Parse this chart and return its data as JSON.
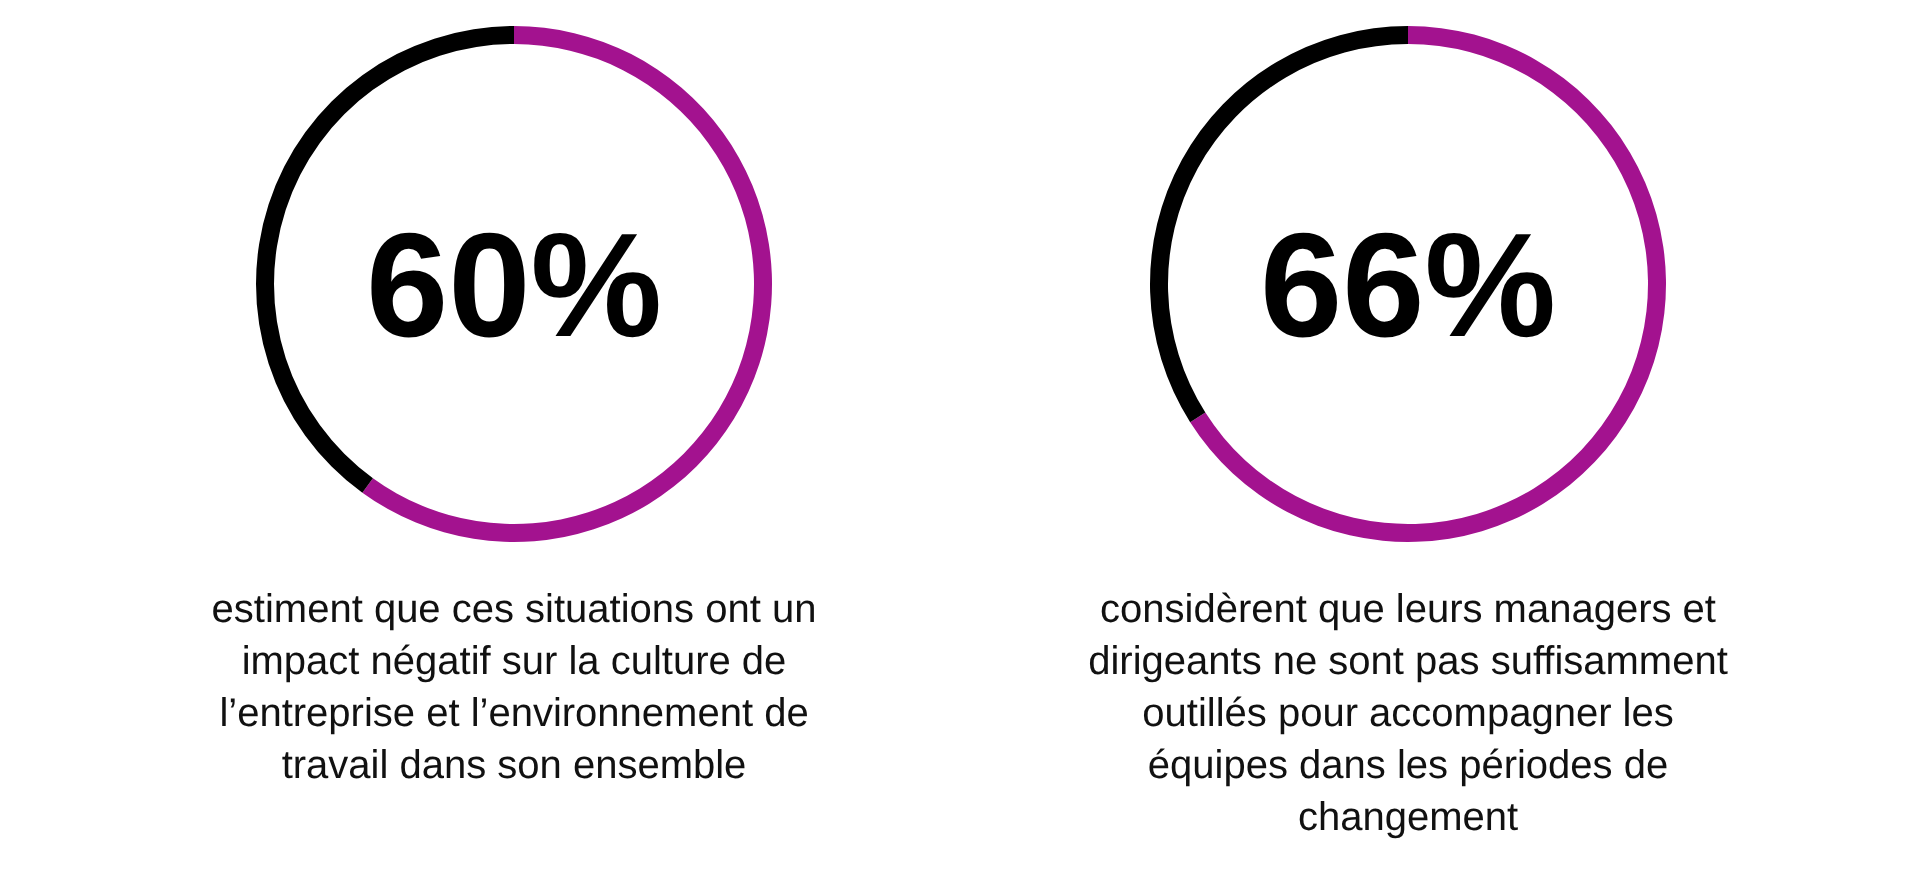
{
  "chart_data": [
    {
      "type": "donut",
      "title": "60%",
      "categories": [
        null,
        null
      ],
      "values": [
        60,
        40
      ],
      "colors": [
        "#a3128f",
        "#000000"
      ],
      "annotations": [
        "estiment que ces situations ont un impact négatif sur la culture de l’entreprise et l’environnement de travail dans son ensemble"
      ]
    },
    {
      "type": "donut",
      "title": "66%",
      "categories": [
        null,
        null
      ],
      "values": [
        66,
        34
      ],
      "colors": [
        "#a3128f",
        "#000000"
      ],
      "annotations": [
        "considèrent que leurs managers et dirigeants ne sont pas suffisamment outillés pour accompagner les équipes dans les périodes de changement"
      ]
    }
  ]
}
